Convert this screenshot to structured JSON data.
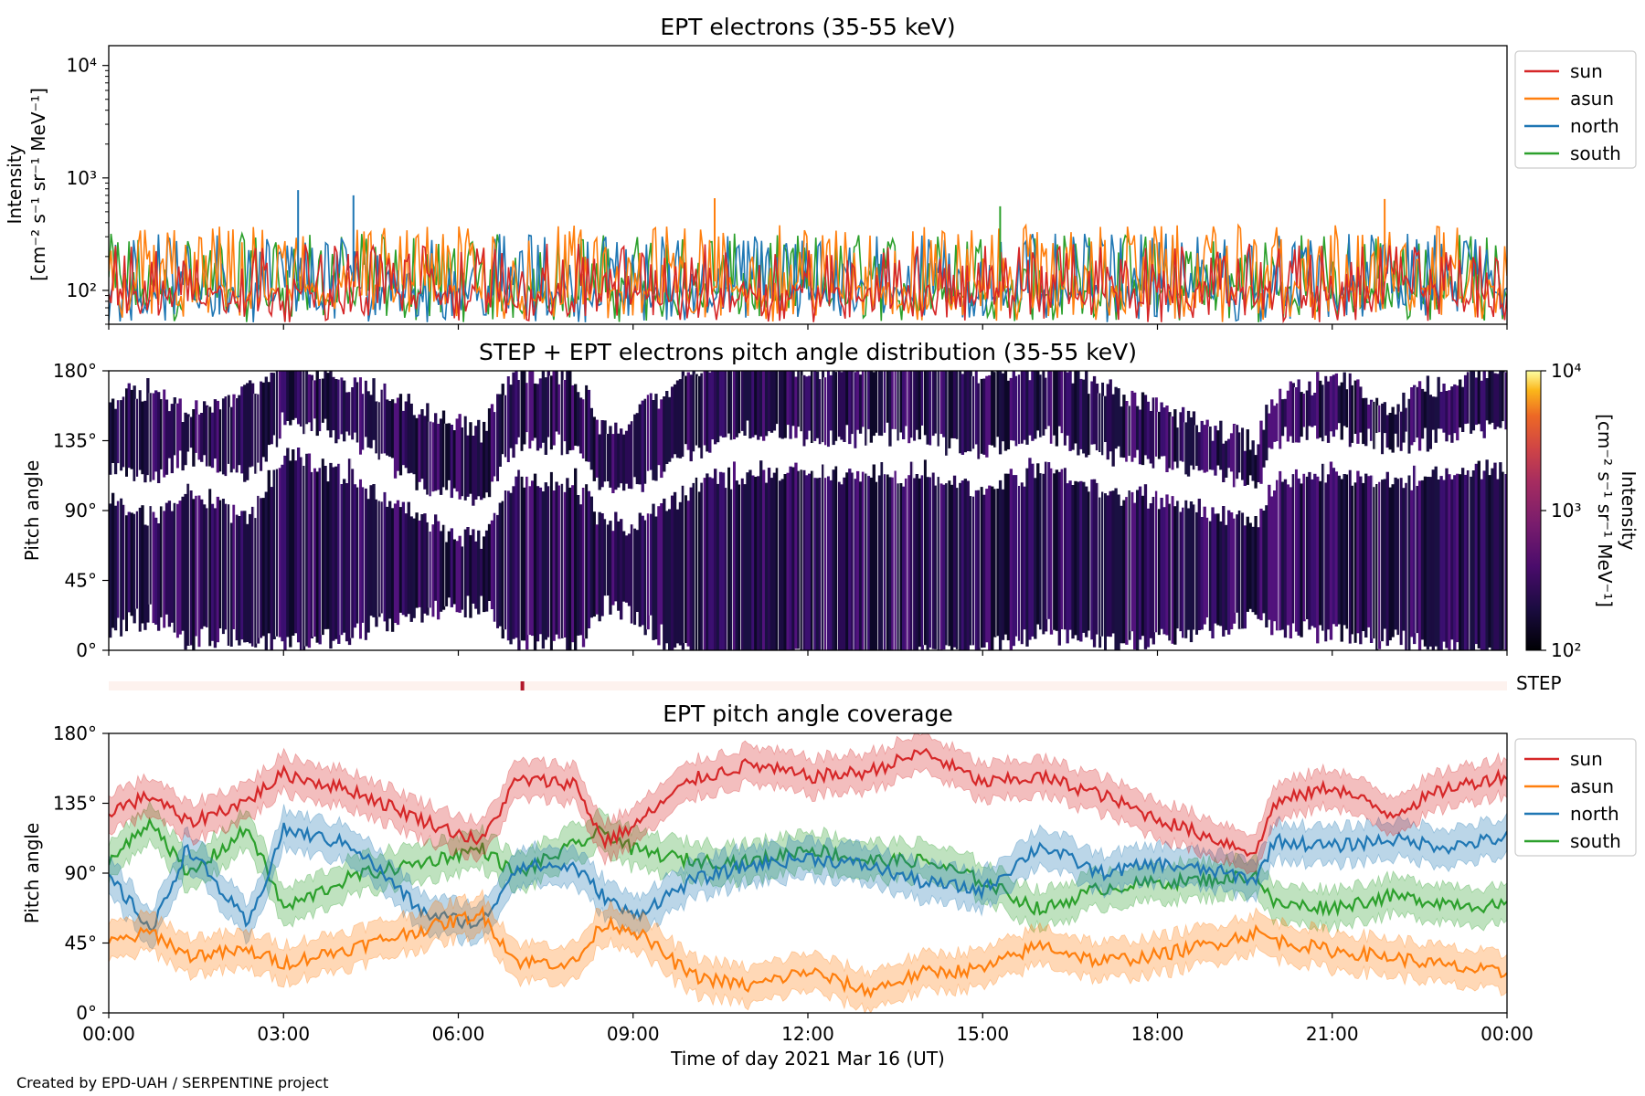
{
  "footer": "Created by EPD-UAH / SERPENTINE project",
  "x_axis": {
    "label": "Time of day 2021 Mar 16 (UT)",
    "ticks": [
      "00:00",
      "03:00",
      "06:00",
      "09:00",
      "12:00",
      "15:00",
      "18:00",
      "21:00",
      "00:00"
    ],
    "range_hours": [
      0,
      24
    ]
  },
  "colors": {
    "sun": "#d62728",
    "asun": "#ff7f0e",
    "north": "#1f77b4",
    "south": "#2ca02c",
    "step_band": "#fdf2ee",
    "step_marker": "#b2182b"
  },
  "chart_data": [
    {
      "type": "line",
      "title": "EPT electrons (35-55 keV)",
      "ylabel_1": "Intensity",
      "ylabel_2": "[cm⁻² s⁻¹ sr⁻¹ MeV⁻¹]",
      "yscale": "log",
      "ylim": [
        50,
        15000
      ],
      "ytick_labels": [
        "10²",
        "10³",
        "10⁴"
      ],
      "ytick_values": [
        100,
        1000,
        10000
      ],
      "legend_position": "outside-right",
      "grid": false,
      "series": [
        {
          "name": "sun",
          "typical_range": [
            50,
            350
          ]
        },
        {
          "name": "asun",
          "typical_range": [
            60,
            500
          ]
        },
        {
          "name": "north",
          "typical_range": [
            60,
            400
          ]
        },
        {
          "name": "south",
          "typical_range": [
            60,
            400
          ]
        }
      ],
      "peaks": [
        {
          "series": "north",
          "x_hours": 3.25,
          "value": 780
        },
        {
          "series": "north",
          "x_hours": 4.2,
          "value": 700
        },
        {
          "series": "asun",
          "x_hours": 10.4,
          "value": 660
        },
        {
          "series": "asun",
          "x_hours": 21.9,
          "value": 650
        },
        {
          "series": "south",
          "x_hours": 15.3,
          "value": 560
        }
      ]
    },
    {
      "type": "heatmap",
      "title": "STEP + EPT electrons pitch angle distribution (35-55 keV)",
      "ylabel": "Pitch angle",
      "ylim": [
        0,
        180
      ],
      "ytick_labels": [
        "0°",
        "45°",
        "90°",
        "135°",
        "180°"
      ],
      "colorbar": {
        "label_1": "Intensity",
        "label_2": "[cm⁻² s⁻¹ sr⁻¹ MeV⁻¹]",
        "scale": "log",
        "range": [
          100,
          10000
        ],
        "tick_labels": [
          "10²",
          "10³",
          "10⁴"
        ]
      }
    },
    {
      "type": "bar",
      "label": "STEP",
      "marker_hours": [
        7.1
      ]
    },
    {
      "type": "line",
      "title": "EPT pitch angle coverage",
      "ylabel": "Pitch angle",
      "ylim": [
        0,
        180
      ],
      "ytick_labels": [
        "0°",
        "45°",
        "90°",
        "135°",
        "180°"
      ],
      "legend_position": "outside-right",
      "band_halfwidth_deg": 12,
      "x_hours": [
        0,
        0.75,
        1.35,
        2.4,
        3.0,
        4.2,
        5.4,
        6.4,
        7.0,
        8.0,
        8.5,
        9.0,
        10.0,
        11.0,
        12.0,
        13.0,
        14.0,
        15.0,
        16.0,
        17.0,
        18.0,
        19.0,
        19.7,
        20.0,
        21.0,
        22.0,
        23.0,
        24.0
      ],
      "series": [
        {
          "name": "sun",
          "values": [
            130,
            140,
            122,
            137,
            154,
            143,
            124,
            110,
            150,
            148,
            110,
            120,
            150,
            160,
            152,
            155,
            168,
            148,
            152,
            141,
            125,
            112,
            103,
            135,
            146,
            128,
            145,
            153
          ]
        },
        {
          "name": "asun",
          "values": [
            45,
            52,
            37,
            40,
            32,
            42,
            54,
            64,
            33,
            32,
            58,
            54,
            24,
            17,
            27,
            14,
            26,
            28,
            44,
            33,
            37,
            45,
            52,
            47,
            40,
            36,
            30,
            25
          ]
        },
        {
          "name": "north",
          "values": [
            88,
            53,
            107,
            56,
            118,
            108,
            64,
            57,
            95,
            94,
            75,
            62,
            85,
            95,
            100,
            95,
            84,
            79,
            108,
            90,
            96,
            91,
            86,
            111,
            107,
            112,
            107,
            113
          ]
        },
        {
          "name": "south",
          "values": [
            97,
            124,
            88,
            119,
            67,
            88,
            97,
            106,
            89,
            108,
            117,
            105,
            98,
            97,
            106,
            98,
            98,
            85,
            66,
            80,
            84,
            86,
            89,
            70,
            68,
            75,
            71,
            68
          ]
        }
      ]
    }
  ]
}
